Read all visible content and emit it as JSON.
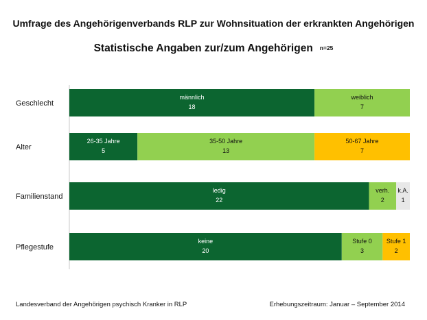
{
  "header": {
    "title": "Umfrage des Angehörigenverbands RLP zur Wohnsituation der erkrankten Angehörigen",
    "subtitle": "Statistische Angaben zur/zum Angehörigen",
    "sample_note": "n=25"
  },
  "footer": {
    "left": "Landesverband der Angehörigen psychisch Kranker in RLP",
    "right": "Erhebungszeitraum: Januar – September 2014"
  },
  "colors": {
    "dark_green": "#0c6530",
    "light_green": "#92d050",
    "orange": "#ffc000",
    "light_gray": "#e8e8e8"
  },
  "chart_data": {
    "type": "bar",
    "orientation": "horizontal",
    "stacked": true,
    "xlim": [
      0,
      25
    ],
    "grid": false,
    "legend": "none",
    "categories": [
      "Geschlecht",
      "Alter",
      "Familienstand",
      "Pflegestufe"
    ],
    "rows": [
      {
        "category": "Geschlecht",
        "segments": [
          {
            "label": "männlich",
            "value": 18,
            "color": "#0c6530"
          },
          {
            "label": "weiblich",
            "value": 7,
            "color": "#92d050"
          }
        ]
      },
      {
        "category": "Alter",
        "segments": [
          {
            "label": "26-35 Jahre",
            "value": 5,
            "color": "#0c6530"
          },
          {
            "label": "35-50 Jahre",
            "value": 13,
            "color": "#92d050"
          },
          {
            "label": "50-67 Jahre",
            "value": 7,
            "color": "#ffc000"
          }
        ]
      },
      {
        "category": "Familienstand",
        "segments": [
          {
            "label": "ledig",
            "value": 22,
            "color": "#0c6530"
          },
          {
            "label": "verh.",
            "value": 2,
            "color": "#92d050"
          },
          {
            "label": "k.A.",
            "value": 1,
            "color": "#e8e8e8"
          }
        ]
      },
      {
        "category": "Pflegestufe",
        "segments": [
          {
            "label": "keine",
            "value": 20,
            "color": "#0c6530"
          },
          {
            "label": "Stufe 0",
            "value": 3,
            "color": "#92d050"
          },
          {
            "label": "Stufe 1",
            "value": 2,
            "color": "#ffc000"
          }
        ]
      }
    ]
  }
}
